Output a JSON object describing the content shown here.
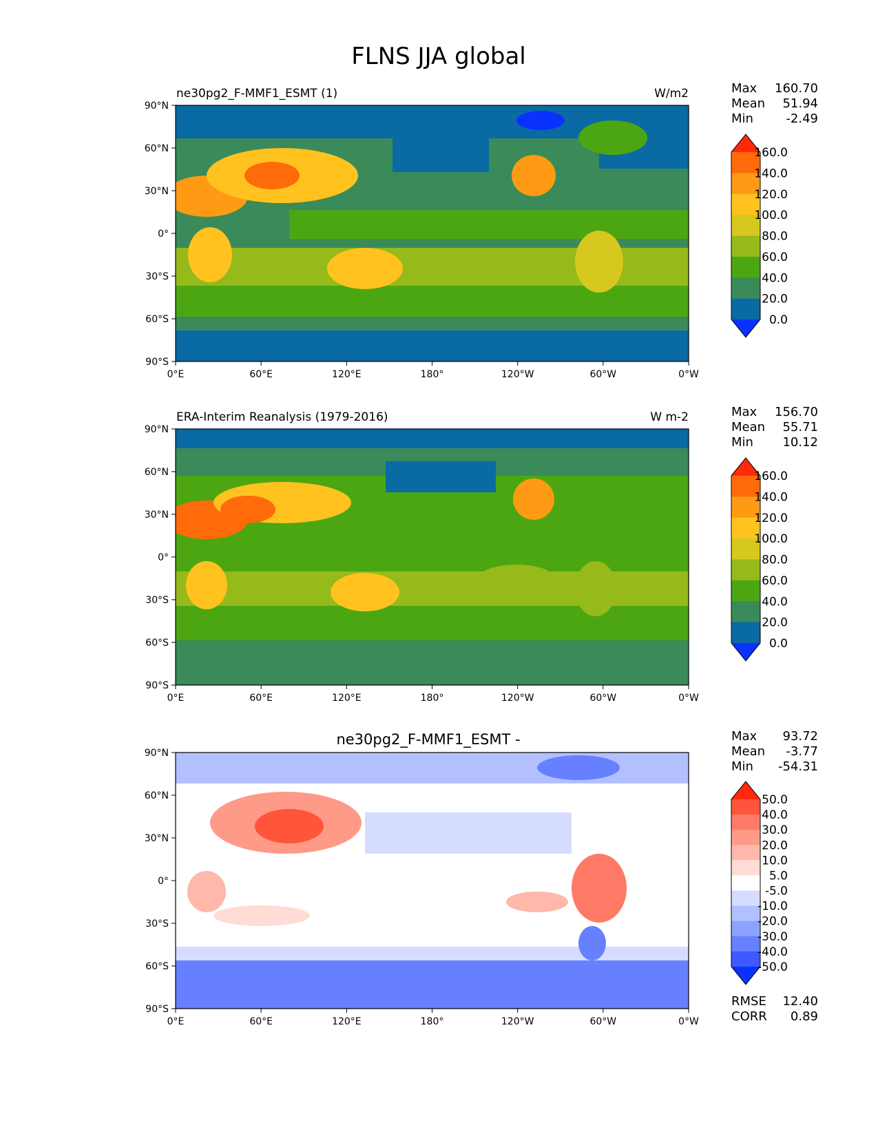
{
  "figure": {
    "title": "FLNS JJA global"
  },
  "chart_data": [
    {
      "type": "heatmap",
      "title_left": "ne30pg2_F-MMF1_ESMT (1)",
      "title_center": "",
      "units": "W/m2",
      "xticks": [
        "0°E",
        "60°E",
        "120°E",
        "180°",
        "120°W",
        "60°W",
        "0°W"
      ],
      "yticks": [
        "90°N",
        "60°N",
        "30°N",
        "0°",
        "30°S",
        "60°S",
        "90°S"
      ],
      "xlim": [
        0,
        360
      ],
      "ylim": [
        -90,
        90
      ],
      "stats": [
        {
          "label": "Max",
          "value": "160.70"
        },
        {
          "label": "Mean",
          "value": "51.94"
        },
        {
          "label": "Min",
          "value": "-2.49"
        }
      ],
      "colorbar": {
        "levels": [
          "160.0",
          "140.0",
          "120.0",
          "100.0",
          "80.0",
          "60.0",
          "40.0",
          "20.0",
          "0.0"
        ],
        "colors": [
          "#ff2a0a",
          "#ff6a0a",
          "#ff9a14",
          "#ffc21e",
          "#d6c81e",
          "#96ba1a",
          "#4ca612",
          "#3a8a5a",
          "#0a6aa4",
          "#0a32ff"
        ]
      },
      "extra_stats": []
    },
    {
      "type": "heatmap",
      "title_left": "ERA-Interim Reanalysis (1979-2016)",
      "title_center": "",
      "units": "W m-2",
      "xticks": [
        "0°E",
        "60°E",
        "120°E",
        "180°",
        "120°W",
        "60°W",
        "0°W"
      ],
      "yticks": [
        "90°N",
        "60°N",
        "30°N",
        "0°",
        "30°S",
        "60°S",
        "90°S"
      ],
      "xlim": [
        0,
        360
      ],
      "ylim": [
        -90,
        90
      ],
      "stats": [
        {
          "label": "Max",
          "value": "156.70"
        },
        {
          "label": "Mean",
          "value": "55.71"
        },
        {
          "label": "Min",
          "value": "10.12"
        }
      ],
      "colorbar": {
        "levels": [
          "160.0",
          "140.0",
          "120.0",
          "100.0",
          "80.0",
          "60.0",
          "40.0",
          "20.0",
          "0.0"
        ],
        "colors": [
          "#ff2a0a",
          "#ff6a0a",
          "#ff9a14",
          "#ffc21e",
          "#d6c81e",
          "#96ba1a",
          "#4ca612",
          "#3a8a5a",
          "#0a6aa4",
          "#0a32ff"
        ]
      },
      "extra_stats": []
    },
    {
      "type": "heatmap",
      "title_left": "",
      "title_center": "ne30pg2_F-MMF1_ESMT -",
      "units": "",
      "xticks": [
        "0°E",
        "60°E",
        "120°E",
        "180°",
        "120°W",
        "60°W",
        "0°W"
      ],
      "yticks": [
        "90°N",
        "60°N",
        "30°N",
        "0°",
        "30°S",
        "60°S",
        "90°S"
      ],
      "xlim": [
        0,
        360
      ],
      "ylim": [
        -90,
        90
      ],
      "stats": [
        {
          "label": "Max",
          "value": "93.72"
        },
        {
          "label": "Mean",
          "value": "-3.77"
        },
        {
          "label": "Min",
          "value": "-54.31"
        }
      ],
      "colorbar": {
        "levels": [
          "50.0",
          "40.0",
          "30.0",
          "20.0",
          "10.0",
          "5.0",
          "-5.0",
          "-10.0",
          "-20.0",
          "-30.0",
          "-40.0",
          "-50.0"
        ],
        "colors": [
          "#ff2a0a",
          "#ff553a",
          "#ff7a66",
          "#ff9a88",
          "#ffb8aa",
          "#ffdcd6",
          "#ffffff",
          "#d6dcff",
          "#b2c0ff",
          "#8ca2ff",
          "#6680ff",
          "#3c5aff",
          "#0a32ff"
        ]
      },
      "extra_stats": [
        {
          "label": "RMSE",
          "value": "12.40"
        },
        {
          "label": "CORR",
          "value": "0.89"
        }
      ]
    }
  ]
}
